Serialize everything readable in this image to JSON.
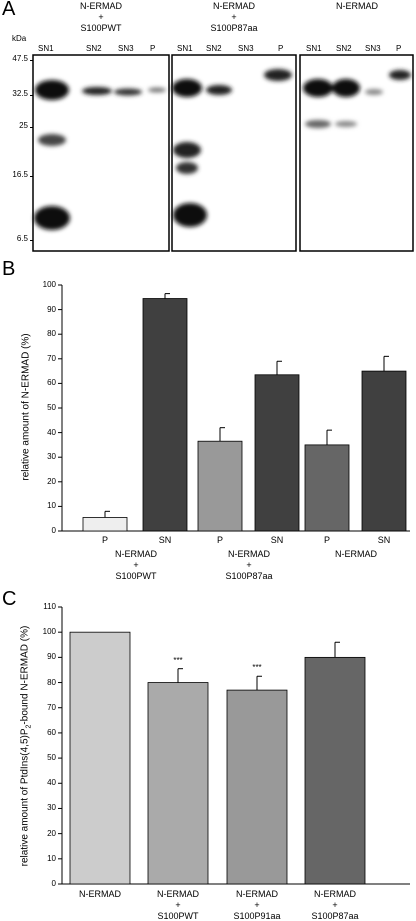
{
  "panels": {
    "a": "A",
    "b": "B",
    "c": "C"
  },
  "blot": {
    "kda_label": "kDa",
    "markers": [
      "47.5",
      "32.5",
      "25",
      "16.5",
      "6.5"
    ],
    "groups": [
      {
        "title": [
          "N-ERMAD",
          "+",
          "S100PWT"
        ],
        "lanes": [
          "SN1",
          "SN2",
          "SN3",
          "P"
        ]
      },
      {
        "title": [
          "N-ERMAD",
          "+",
          "S100P87aa"
        ],
        "lanes": [
          "SN1",
          "SN2",
          "SN3",
          "P"
        ]
      },
      {
        "title": [
          "N-ERMAD"
        ],
        "lanes": [
          "SN1",
          "SN2",
          "SN3",
          "P"
        ]
      }
    ]
  },
  "chart_data": [
    {
      "type": "bar",
      "ylabel": "relative amount of N-ERMAD (%)",
      "ylim": [
        0,
        100
      ],
      "yticks": [
        0,
        10,
        20,
        30,
        40,
        50,
        60,
        70,
        80,
        90,
        100
      ],
      "bars": [
        {
          "label": "P",
          "value": 5.5,
          "error": 2.5,
          "color": "#eeeeee"
        },
        {
          "label": "SN",
          "value": 94.5,
          "error": 2.0,
          "color": "#404040"
        },
        {
          "label": "P",
          "value": 36.5,
          "error": 5.5,
          "color": "#999999"
        },
        {
          "label": "SN",
          "value": 63.5,
          "error": 5.5,
          "color": "#404040"
        },
        {
          "label": "P",
          "value": 35.0,
          "error": 6.0,
          "color": "#666666"
        },
        {
          "label": "SN",
          "value": 65.0,
          "error": 6.0,
          "color": "#404040"
        }
      ],
      "groups": [
        [
          "N-ERMAD",
          "+",
          "S100PWT"
        ],
        [
          "N-ERMAD",
          "+",
          "S100P87aa"
        ],
        [
          "N-ERMAD"
        ]
      ]
    },
    {
      "type": "bar",
      "ylabel_parts": [
        "relative amount of PtdIns(4,5)P",
        "2",
        "-bound N-ERMAD (%)"
      ],
      "ylim": [
        0,
        110
      ],
      "yticks": [
        0,
        10,
        20,
        30,
        40,
        50,
        60,
        70,
        80,
        90,
        100,
        110
      ],
      "bars": [
        {
          "value": 100,
          "error": 0,
          "color": "#cccccc",
          "annotation": ""
        },
        {
          "value": 80,
          "error": 5.5,
          "color": "#aaaaaa",
          "annotation": "***"
        },
        {
          "value": 77,
          "error": 5.5,
          "color": "#999999",
          "annotation": "***"
        },
        {
          "value": 90,
          "error": 6.0,
          "color": "#666666",
          "annotation": ""
        }
      ],
      "categories": [
        [
          "N-ERMAD"
        ],
        [
          "N-ERMAD",
          "+",
          "S100PWT"
        ],
        [
          "N-ERMAD",
          "+",
          "S100P91aa"
        ],
        [
          "N-ERMAD",
          "+",
          "S100P87aa"
        ]
      ]
    }
  ]
}
